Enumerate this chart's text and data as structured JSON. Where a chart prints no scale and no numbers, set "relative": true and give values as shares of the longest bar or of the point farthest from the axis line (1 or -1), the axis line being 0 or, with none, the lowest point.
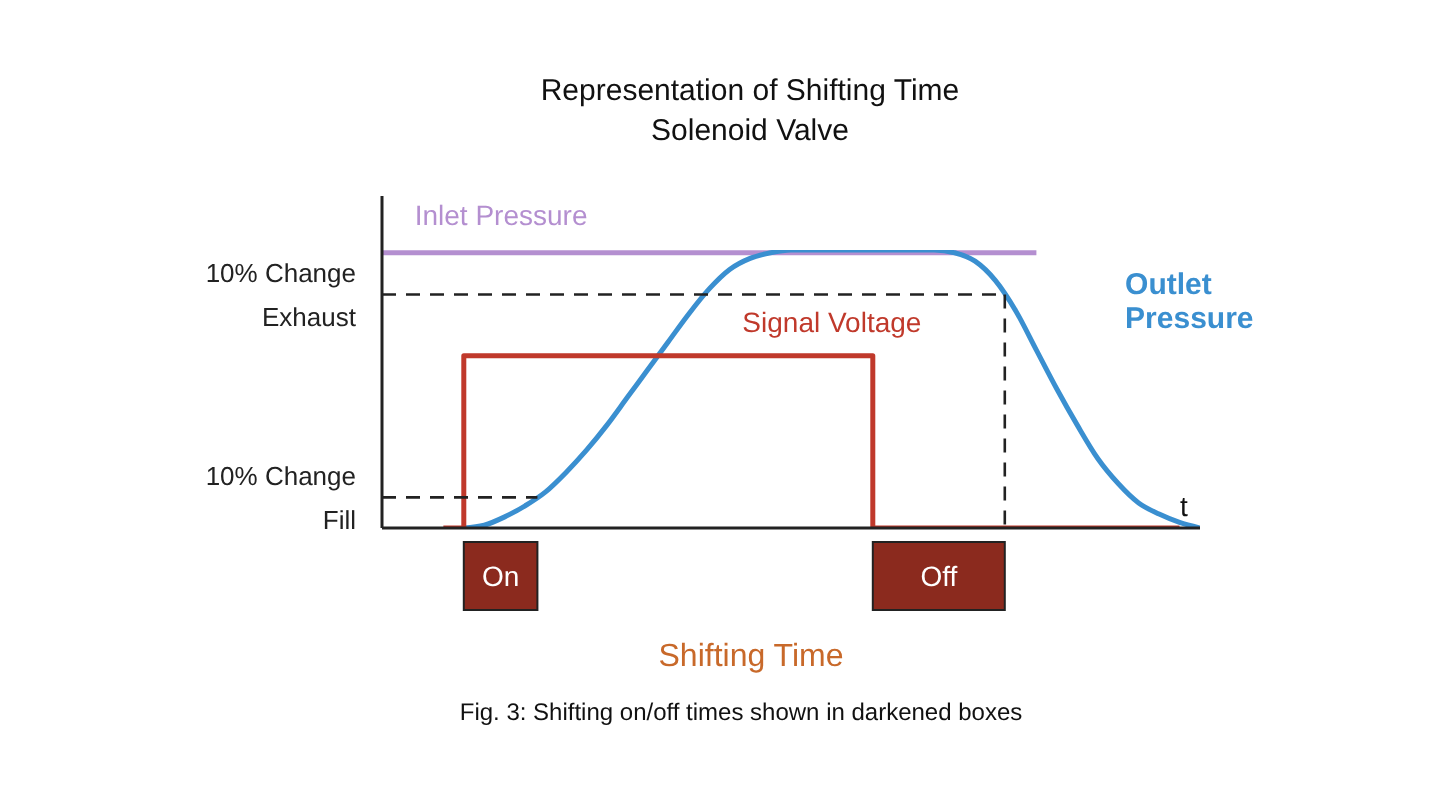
{
  "chart_data": {
    "type": "line",
    "title": "Representation of Shifting Time",
    "subtitle": "Solenoid Valve",
    "xlabel": "t",
    "relative": true,
    "marker": "none",
    "line_style": "solid",
    "categories": [
      null,
      null,
      null,
      null,
      null,
      null,
      null,
      null,
      null,
      null,
      null,
      null,
      null,
      null,
      null,
      null,
      null,
      null,
      null,
      null,
      null,
      null,
      null,
      null,
      null,
      null,
      null,
      null,
      null,
      null,
      null,
      null,
      null,
      null,
      null,
      null,
      null,
      null,
      null,
      null,
      null
    ],
    "series": [
      {
        "name": "Inlet Pressure",
        "color": "#b48fd0",
        "values": [
          0.99,
          0.99,
          0.99,
          0.99,
          0.99,
          0.99,
          0.99,
          0.99,
          0.99,
          0.99,
          0.99,
          0.99,
          0.99,
          0.99,
          0.99,
          0.99,
          0.99,
          0.99,
          0.99,
          0.99,
          0.99,
          0.99,
          0.99,
          0.99,
          0.99,
          0.99,
          0.99,
          0.99,
          0.99,
          0.99,
          0.99,
          0.99,
          0.99,
          null,
          null,
          null,
          null,
          null,
          null,
          null,
          null
        ]
      },
      {
        "name": "Outlet Pressure",
        "color": "#3a8fd0",
        "values": [
          null,
          null,
          null,
          null,
          0,
          0.01,
          0.04,
          0.08,
          0.13,
          0.2,
          0.28,
          0.37,
          0.47,
          0.57,
          0.67,
          0.77,
          0.86,
          0.93,
          0.97,
          0.99,
          1,
          1,
          1,
          1,
          1,
          1,
          1,
          1,
          0.99,
          0.96,
          0.89,
          0.78,
          0.64,
          0.5,
          0.37,
          0.25,
          0.16,
          0.09,
          0.05,
          0.02,
          0
        ]
      },
      {
        "name": "Signal Voltage",
        "type": "step",
        "color": "#c0392b",
        "values": [
          null,
          null,
          null,
          0,
          0.62,
          0.62,
          0.62,
          0.62,
          0.62,
          0.62,
          0.62,
          0.62,
          0.62,
          0.62,
          0.62,
          0.62,
          0.62,
          0.62,
          0.62,
          0.62,
          0.62,
          0.62,
          0.62,
          0.62,
          0,
          0,
          0,
          0,
          0,
          0,
          0,
          0,
          0,
          0,
          0,
          0,
          0,
          0,
          0,
          0,
          null
        ]
      }
    ],
    "ref_lines": [
      {
        "axis": "y",
        "value": 0.84,
        "label": "10% Change Exhaust",
        "color": "#222222",
        "line_style": "dashed"
      },
      {
        "axis": "y",
        "value": 0.11,
        "label": "10% Change Fill",
        "color": "#222222",
        "line_style": "dashed"
      }
    ],
    "annotations": [
      "On",
      "Off",
      "Shifting Time",
      "Fig. 3: Shifting on/off times shown in darkened boxes"
    ]
  }
}
